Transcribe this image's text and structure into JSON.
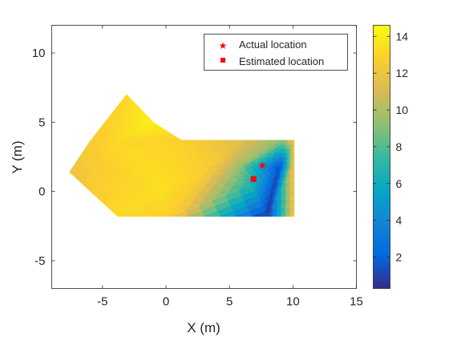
{
  "chart_data": {
    "type": "heatmap",
    "title": "",
    "xlabel": "X (m)",
    "ylabel": "Y (m)",
    "xlim": [
      -9,
      15
    ],
    "ylim": [
      -7,
      12
    ],
    "xticks": [
      -5,
      0,
      5,
      10,
      15
    ],
    "yticks": [
      -5,
      0,
      5,
      10
    ],
    "colorbar": {
      "colormap": "parula",
      "clim": [
        0.3,
        14.6
      ],
      "ticks": [
        2,
        4,
        6,
        8,
        10,
        12,
        14
      ]
    },
    "surface_vertices": [
      {
        "x": -7.6,
        "y": 1.4,
        "value": 12.0
      },
      {
        "x": -6.0,
        "y": 3.6,
        "value": 12.6
      },
      {
        "x": -3.1,
        "y": 7.0,
        "value": 13.2
      },
      {
        "x": -1.0,
        "y": 5.0,
        "value": 14.2
      },
      {
        "x": 1.2,
        "y": 3.7,
        "value": 12.9
      },
      {
        "x": 6.2,
        "y": 3.7,
        "value": 11.3
      },
      {
        "x": 9.2,
        "y": 3.7,
        "value": 9.2
      },
      {
        "x": 10.1,
        "y": 3.7,
        "value": 12.5
      },
      {
        "x": -5.6,
        "y": 1.9,
        "value": 12.6
      },
      {
        "x": -3.7,
        "y": 3.7,
        "value": 13.2
      },
      {
        "x": -0.3,
        "y": 0.2,
        "value": 13.5
      },
      {
        "x": 3.5,
        "y": 1.8,
        "value": 12.6
      },
      {
        "x": 5.5,
        "y": 1.8,
        "value": 10.0
      },
      {
        "x": 9.0,
        "y": 1.8,
        "value": 1.2
      },
      {
        "x": 10.1,
        "y": 1.8,
        "value": 12.5
      },
      {
        "x": 6.8,
        "y": 0.4,
        "value": 6.5
      },
      {
        "x": -3.8,
        "y": -1.8,
        "value": 13.2
      },
      {
        "x": 0.5,
        "y": -1.8,
        "value": 12.8
      },
      {
        "x": 8.0,
        "y": -1.8,
        "value": 0.4
      },
      {
        "x": 10.1,
        "y": -1.8,
        "value": 12.5
      }
    ],
    "surface_triangles": [
      [
        0,
        8,
        16
      ],
      [
        0,
        1,
        8
      ],
      [
        1,
        2,
        9
      ],
      [
        1,
        9,
        8
      ],
      [
        2,
        3,
        9
      ],
      [
        3,
        4,
        9
      ],
      [
        8,
        9,
        10
      ],
      [
        8,
        10,
        16
      ],
      [
        16,
        10,
        17
      ],
      [
        9,
        4,
        10
      ],
      [
        4,
        11,
        10
      ],
      [
        4,
        5,
        11
      ],
      [
        5,
        12,
        11
      ],
      [
        5,
        6,
        12
      ],
      [
        6,
        13,
        12
      ],
      [
        6,
        7,
        13
      ],
      [
        7,
        14,
        13
      ],
      [
        10,
        11,
        17
      ],
      [
        11,
        15,
        17
      ],
      [
        11,
        12,
        15
      ],
      [
        12,
        13,
        15
      ],
      [
        13,
        18,
        15
      ],
      [
        15,
        18,
        17
      ],
      [
        13,
        14,
        18
      ],
      [
        14,
        19,
        18
      ]
    ],
    "series": [
      {
        "name": "Actual location",
        "marker": "star",
        "color": "#ff0000",
        "x": 7.6,
        "y": 1.9
      },
      {
        "name": "Estimated location",
        "marker": "square",
        "color": "#ff0000",
        "x": 6.9,
        "y": 0.9
      }
    ],
    "legend_position": "top-right",
    "grid": false
  }
}
